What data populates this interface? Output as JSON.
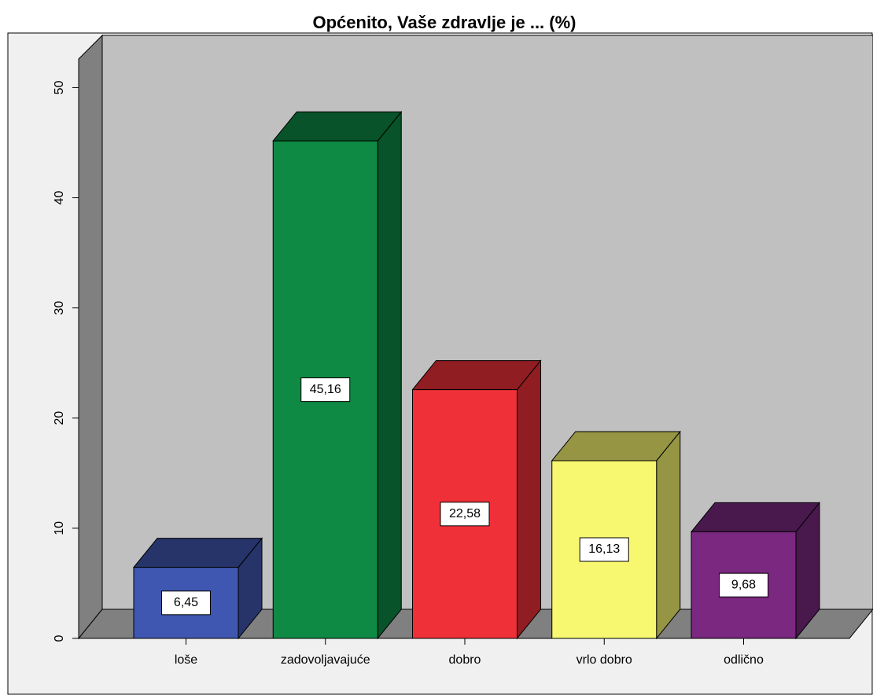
{
  "chart_data": {
    "type": "bar3d",
    "title": "Općenito, Vaše zdravlje je ... (%)",
    "categories": [
      "loše",
      "zadovoljavajuće",
      "dobro",
      "vrlo dobro",
      "odlično"
    ],
    "values": [
      6.45,
      45.16,
      22.58,
      16.13,
      9.68
    ],
    "value_labels": [
      "6,45",
      "45,16",
      "22,58",
      "16,13",
      "9,68"
    ],
    "colors": [
      "#3f57b0",
      "#0e8a45",
      "#f03038",
      "#f8f870",
      "#7a2880"
    ],
    "ylim": [
      0,
      52.6
    ],
    "yticks": [
      0,
      10,
      20,
      30,
      40,
      50
    ]
  }
}
